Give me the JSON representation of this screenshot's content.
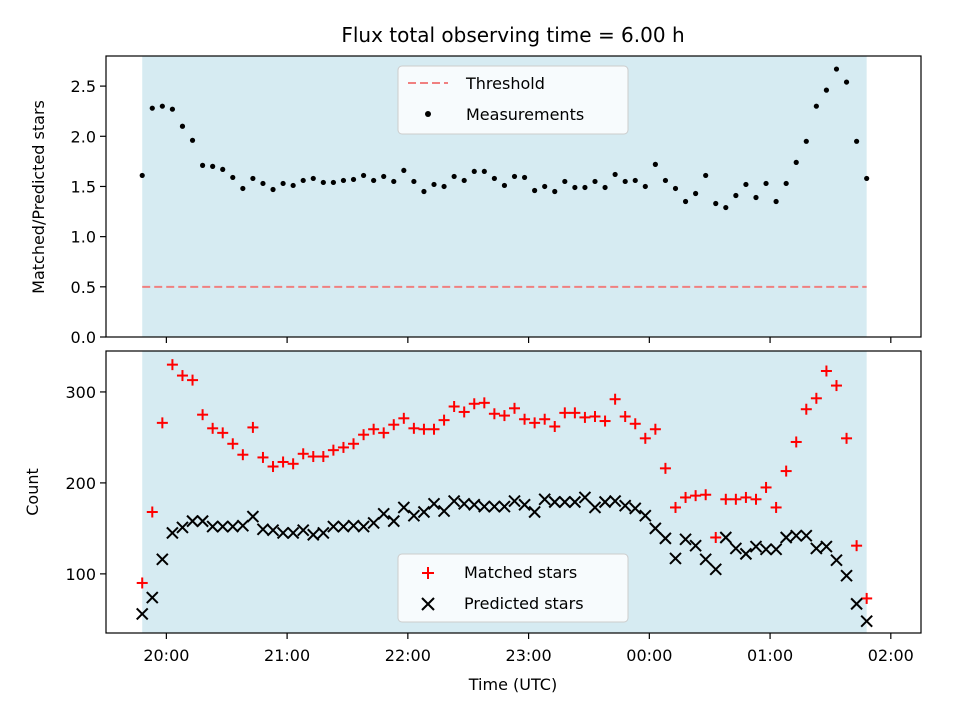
{
  "chart_data": [
    {
      "type": "scatter",
      "title": "Flux total observing time = 6.00 h",
      "xlabel": "",
      "ylabel": "Matched/Predicted stars",
      "xlim": [
        "19:30",
        "02:15"
      ],
      "ylim": [
        0,
        2.8
      ],
      "yticks": [
        "0.0",
        "0.5",
        "1.0",
        "1.5",
        "2.0",
        "2.5"
      ],
      "shaded_region": [
        "19:48",
        "01:48"
      ],
      "legend": "upper center",
      "threshold": {
        "name": "Threshold",
        "value": 0.5,
        "color": "#f08080"
      },
      "series": [
        {
          "name": "Measurements",
          "color": "#000000",
          "marker": "dot",
          "x": [
            "19:48",
            "19:53",
            "19:58",
            "20:03",
            "20:08",
            "20:13",
            "20:18",
            "20:23",
            "20:28",
            "20:33",
            "20:38",
            "20:43",
            "20:48",
            "20:53",
            "20:58",
            "21:03",
            "21:08",
            "21:13",
            "21:18",
            "21:23",
            "21:28",
            "21:33",
            "21:38",
            "21:43",
            "21:48",
            "21:53",
            "21:58",
            "22:03",
            "22:08",
            "22:13",
            "22:18",
            "22:23",
            "22:28",
            "22:33",
            "22:38",
            "22:43",
            "22:48",
            "22:53",
            "22:58",
            "23:03",
            "23:08",
            "23:13",
            "23:18",
            "23:23",
            "23:28",
            "23:33",
            "23:38",
            "23:43",
            "23:48",
            "23:53",
            "23:58",
            "00:03",
            "00:08",
            "00:13",
            "00:18",
            "00:23",
            "00:28",
            "00:33",
            "00:38",
            "00:43",
            "00:48",
            "00:53",
            "00:58",
            "01:03",
            "01:08",
            "01:13",
            "01:18",
            "01:23",
            "01:28",
            "01:33",
            "01:38",
            "01:43",
            "01:48"
          ],
          "y": [
            1.61,
            2.28,
            2.3,
            2.27,
            2.1,
            1.96,
            1.71,
            1.7,
            1.67,
            1.59,
            1.48,
            1.58,
            1.53,
            1.47,
            1.53,
            1.51,
            1.56,
            1.58,
            1.54,
            1.54,
            1.56,
            1.57,
            1.61,
            1.56,
            1.6,
            1.55,
            1.66,
            1.55,
            1.45,
            1.52,
            1.5,
            1.6,
            1.56,
            1.65,
            1.65,
            1.58,
            1.51,
            1.6,
            1.59,
            1.46,
            1.5,
            1.45,
            1.55,
            1.49,
            1.49,
            1.55,
            1.49,
            1.62,
            1.55,
            1.56,
            1.5,
            1.72,
            1.56,
            1.48,
            1.35,
            1.43,
            1.61,
            1.33,
            1.29,
            1.41,
            1.52,
            1.39,
            1.53,
            1.35,
            1.53,
            1.74,
            1.95,
            2.3,
            2.46,
            2.67,
            2.54,
            1.95,
            1.58
          ]
        }
      ]
    },
    {
      "type": "scatter",
      "title": "",
      "xlabel": "Time (UTC)",
      "ylabel": "Count",
      "xlim": [
        "19:30",
        "02:15"
      ],
      "ylim": [
        35,
        345
      ],
      "yticks": [
        "100",
        "200",
        "300"
      ],
      "xticks": [
        "20:00",
        "21:00",
        "22:00",
        "23:00",
        "00:00",
        "01:00",
        "02:00"
      ],
      "shaded_region": [
        "19:48",
        "01:48"
      ],
      "legend": "lower center",
      "series": [
        {
          "name": "Matched stars",
          "color": "#ff0000",
          "marker": "plus",
          "x": [
            "19:48",
            "19:53",
            "19:58",
            "20:03",
            "20:08",
            "20:13",
            "20:18",
            "20:23",
            "20:28",
            "20:33",
            "20:38",
            "20:43",
            "20:48",
            "20:53",
            "20:58",
            "21:03",
            "21:08",
            "21:13",
            "21:18",
            "21:23",
            "21:28",
            "21:33",
            "21:38",
            "21:43",
            "21:48",
            "21:53",
            "21:58",
            "22:03",
            "22:08",
            "22:13",
            "22:18",
            "22:23",
            "22:28",
            "22:33",
            "22:38",
            "22:43",
            "22:48",
            "22:53",
            "22:58",
            "23:03",
            "23:08",
            "23:13",
            "23:18",
            "23:23",
            "23:28",
            "23:33",
            "23:38",
            "23:43",
            "23:48",
            "23:53",
            "23:58",
            "00:03",
            "00:08",
            "00:13",
            "00:18",
            "00:23",
            "00:28",
            "00:33",
            "00:38",
            "00:43",
            "00:48",
            "00:53",
            "00:58",
            "01:03",
            "01:08",
            "01:13",
            "01:18",
            "01:23",
            "01:28",
            "01:33",
            "01:38",
            "01:43",
            "01:48"
          ],
          "y": [
            90,
            168,
            266,
            330,
            318,
            313,
            275,
            260,
            255,
            243,
            231,
            261,
            228,
            218,
            223,
            221,
            232,
            229,
            229,
            236,
            239,
            243,
            253,
            259,
            255,
            264,
            271,
            260,
            259,
            259,
            269,
            284,
            278,
            287,
            288,
            276,
            274,
            282,
            270,
            266,
            270,
            262,
            277,
            277,
            272,
            273,
            268,
            292,
            273,
            265,
            249,
            259,
            216,
            173,
            184,
            186,
            187,
            140,
            182,
            182,
            184,
            182,
            195,
            173,
            213,
            245,
            281,
            293,
            323,
            307,
            249,
            131,
            73
          ]
        },
        {
          "name": "Predicted stars",
          "color": "#000000",
          "marker": "x",
          "x": [
            "19:48",
            "19:53",
            "19:58",
            "20:03",
            "20:08",
            "20:13",
            "20:18",
            "20:23",
            "20:28",
            "20:33",
            "20:38",
            "20:43",
            "20:48",
            "20:53",
            "20:58",
            "21:03",
            "21:08",
            "21:13",
            "21:18",
            "21:23",
            "21:28",
            "21:33",
            "21:38",
            "21:43",
            "21:48",
            "21:53",
            "21:58",
            "22:03",
            "22:08",
            "22:13",
            "22:18",
            "22:23",
            "22:28",
            "22:33",
            "22:38",
            "22:43",
            "22:48",
            "22:53",
            "22:58",
            "23:03",
            "23:08",
            "23:13",
            "23:18",
            "23:23",
            "23:28",
            "23:33",
            "23:38",
            "23:43",
            "23:48",
            "23:53",
            "23:58",
            "00:03",
            "00:08",
            "00:13",
            "00:18",
            "00:23",
            "00:28",
            "00:33",
            "00:38",
            "00:43",
            "00:48",
            "00:53",
            "00:58",
            "01:03",
            "01:08",
            "01:13",
            "01:18",
            "01:23",
            "01:28",
            "01:33",
            "01:38",
            "01:43",
            "01:48"
          ],
          "y": [
            56,
            74,
            116,
            145,
            151,
            158,
            158,
            152,
            152,
            152,
            153,
            163,
            149,
            148,
            145,
            145,
            148,
            143,
            145,
            152,
            152,
            153,
            152,
            156,
            166,
            158,
            173,
            164,
            168,
            177,
            169,
            180,
            177,
            176,
            174,
            174,
            174,
            180,
            176,
            168,
            182,
            179,
            179,
            179,
            184,
            173,
            179,
            180,
            175,
            172,
            164,
            150,
            139,
            117,
            138,
            131,
            116,
            105,
            140,
            128,
            122,
            130,
            127,
            127,
            140,
            142,
            142,
            128,
            130,
            115,
            98,
            67,
            48
          ]
        }
      ]
    }
  ]
}
